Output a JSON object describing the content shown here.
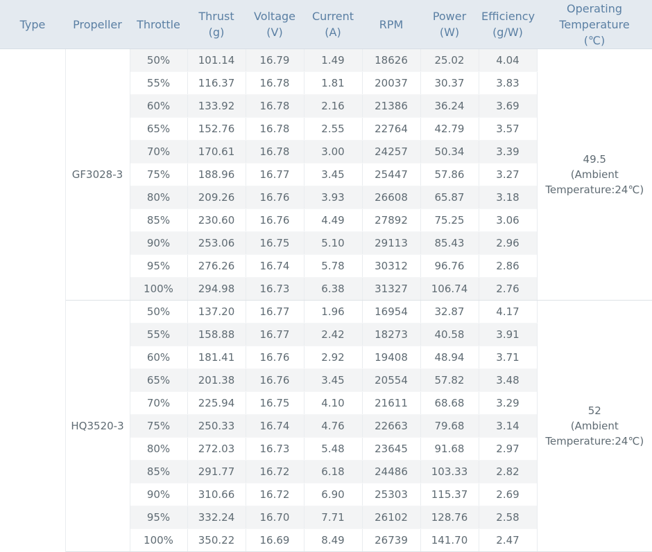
{
  "headers": {
    "type": "Type",
    "propeller": "Propeller",
    "throttle": "Throttle",
    "thrust": [
      "Thrust",
      "(g)"
    ],
    "voltage": [
      "Voltage",
      "(V)"
    ],
    "current": [
      "Current",
      "(A)"
    ],
    "rpm": "RPM",
    "power": [
      "Power",
      "(W)"
    ],
    "efficiency": [
      "Efficiency",
      "(g/W)"
    ],
    "temperature": [
      "Operating",
      "Temperature",
      "(℃)"
    ]
  },
  "groups": [
    {
      "propeller": "GF3028-3",
      "temperature": [
        "49.5",
        "(Ambient",
        "Temperature:24℃)"
      ],
      "rows": [
        [
          "50%",
          "101.14",
          "16.79",
          "1.49",
          "18626",
          "25.02",
          "4.04"
        ],
        [
          "55%",
          "116.37",
          "16.78",
          "1.81",
          "20037",
          "30.37",
          "3.83"
        ],
        [
          "60%",
          "133.92",
          "16.78",
          "2.16",
          "21386",
          "36.24",
          "3.69"
        ],
        [
          "65%",
          "152.76",
          "16.78",
          "2.55",
          "22764",
          "42.79",
          "3.57"
        ],
        [
          "70%",
          "170.61",
          "16.78",
          "3.00",
          "24257",
          "50.34",
          "3.39"
        ],
        [
          "75%",
          "188.96",
          "16.77",
          "3.45",
          "25447",
          "57.86",
          "3.27"
        ],
        [
          "80%",
          "209.26",
          "16.76",
          "3.93",
          "26608",
          "65.87",
          "3.18"
        ],
        [
          "85%",
          "230.60",
          "16.76",
          "4.49",
          "27892",
          "75.25",
          "3.06"
        ],
        [
          "90%",
          "253.06",
          "16.75",
          "5.10",
          "29113",
          "85.43",
          "2.96"
        ],
        [
          "95%",
          "276.26",
          "16.74",
          "5.78",
          "30312",
          "96.76",
          "2.86"
        ],
        [
          "100%",
          "294.98",
          "16.73",
          "6.38",
          "31327",
          "106.74",
          "2.76"
        ]
      ]
    },
    {
      "propeller": "HQ3520-3",
      "temperature": [
        "52",
        "(Ambient",
        "Temperature:24℃)"
      ],
      "rows": [
        [
          "50%",
          "137.20",
          "16.77",
          "1.96",
          "16954",
          "32.87",
          "4.17"
        ],
        [
          "55%",
          "158.88",
          "16.77",
          "2.42",
          "18273",
          "40.58",
          "3.91"
        ],
        [
          "60%",
          "181.41",
          "16.76",
          "2.92",
          "19408",
          "48.94",
          "3.71"
        ],
        [
          "65%",
          "201.38",
          "16.76",
          "3.45",
          "20554",
          "57.82",
          "3.48"
        ],
        [
          "70%",
          "225.94",
          "16.75",
          "4.10",
          "21611",
          "68.68",
          "3.29"
        ],
        [
          "75%",
          "250.33",
          "16.74",
          "4.76",
          "22663",
          "79.68",
          "3.14"
        ],
        [
          "80%",
          "272.03",
          "16.73",
          "5.48",
          "23645",
          "91.68",
          "2.97"
        ],
        [
          "85%",
          "291.77",
          "16.72",
          "6.18",
          "24486",
          "103.33",
          "2.82"
        ],
        [
          "90%",
          "310.66",
          "16.72",
          "6.90",
          "25303",
          "115.37",
          "2.69"
        ],
        [
          "95%",
          "332.24",
          "16.70",
          "7.71",
          "26102",
          "128.76",
          "2.58"
        ],
        [
          "100%",
          "350.22",
          "16.69",
          "8.49",
          "26739",
          "141.70",
          "2.47"
        ]
      ]
    }
  ]
}
